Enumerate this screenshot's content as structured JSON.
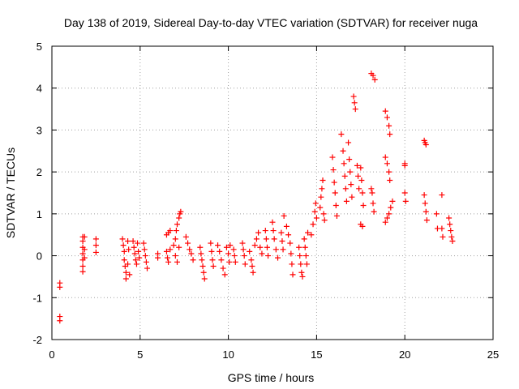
{
  "chart_data": {
    "type": "scatter",
    "title": "Day 138 of 2019, Sidereal Day-to-day VTEC variation (SDTVAR) for receiver nuga",
    "xlabel": "GPS time / hours",
    "ylabel": "SDTVAR / TECUs",
    "xlim": [
      0,
      25
    ],
    "ylim": [
      -2,
      5
    ],
    "xticks": [
      "0",
      "5",
      "10",
      "15",
      "20",
      "25"
    ],
    "yticks": [
      "-2",
      "-1",
      "0",
      "1",
      "2",
      "3",
      "4",
      "5"
    ],
    "grid": true,
    "marker": "plus",
    "color": "#ff0000",
    "series": [
      {
        "name": "SDTVAR",
        "points": [
          [
            0.45,
            -0.65
          ],
          [
            0.45,
            -0.75
          ],
          [
            0.45,
            -1.45
          ],
          [
            0.45,
            -1.55
          ],
          [
            1.75,
            0.45
          ],
          [
            1.75,
            0.35
          ],
          [
            1.75,
            0.2
          ],
          [
            1.75,
            0.05
          ],
          [
            1.75,
            -0.1
          ],
          [
            1.75,
            -0.25
          ],
          [
            1.75,
            -0.38
          ],
          [
            1.85,
            0.45
          ],
          [
            1.85,
            0.15
          ],
          [
            1.85,
            -0.05
          ],
          [
            2.5,
            0.4
          ],
          [
            2.5,
            0.25
          ],
          [
            2.5,
            0.08
          ],
          [
            4.0,
            0.4
          ],
          [
            4.05,
            0.25
          ],
          [
            4.1,
            0.1
          ],
          [
            4.1,
            -0.1
          ],
          [
            4.15,
            -0.25
          ],
          [
            4.2,
            -0.4
          ],
          [
            4.2,
            -0.55
          ],
          [
            4.3,
            0.35
          ],
          [
            4.35,
            0.15
          ],
          [
            4.3,
            -0.2
          ],
          [
            4.4,
            -0.45
          ],
          [
            4.6,
            0.35
          ],
          [
            4.65,
            0.2
          ],
          [
            4.7,
            0.05
          ],
          [
            4.75,
            -0.1
          ],
          [
            4.8,
            -0.2
          ],
          [
            4.85,
            0.3
          ],
          [
            4.9,
            0.1
          ],
          [
            4.95,
            -0.05
          ],
          [
            5.2,
            0.3
          ],
          [
            5.25,
            0.15
          ],
          [
            5.3,
            0.0
          ],
          [
            5.35,
            -0.15
          ],
          [
            5.4,
            -0.3
          ],
          [
            6.0,
            0.05
          ],
          [
            6.0,
            -0.05
          ],
          [
            6.5,
            0.5
          ],
          [
            6.6,
            0.55
          ],
          [
            6.7,
            0.6
          ],
          [
            6.5,
            0.1
          ],
          [
            6.55,
            -0.05
          ],
          [
            6.6,
            -0.15
          ],
          [
            6.7,
            0.15
          ],
          [
            6.9,
            0.25
          ],
          [
            7.0,
            0.4
          ],
          [
            7.05,
            0.6
          ],
          [
            7.1,
            0.75
          ],
          [
            7.2,
            0.9
          ],
          [
            7.25,
            1.0
          ],
          [
            7.3,
            1.05
          ],
          [
            7.0,
            0.0
          ],
          [
            7.1,
            -0.15
          ],
          [
            7.2,
            0.2
          ],
          [
            7.6,
            0.45
          ],
          [
            7.7,
            0.3
          ],
          [
            7.8,
            0.15
          ],
          [
            7.9,
            0.05
          ],
          [
            8.0,
            -0.1
          ],
          [
            8.4,
            0.2
          ],
          [
            8.45,
            0.05
          ],
          [
            8.5,
            -0.1
          ],
          [
            8.55,
            -0.25
          ],
          [
            8.6,
            -0.4
          ],
          [
            8.65,
            -0.55
          ],
          [
            9.0,
            0.3
          ],
          [
            9.05,
            0.1
          ],
          [
            9.1,
            -0.1
          ],
          [
            9.15,
            -0.25
          ],
          [
            9.4,
            0.25
          ],
          [
            9.5,
            0.1
          ],
          [
            9.6,
            -0.1
          ],
          [
            9.7,
            -0.3
          ],
          [
            9.8,
            -0.45
          ],
          [
            9.9,
            0.2
          ],
          [
            10.0,
            0.05
          ],
          [
            10.05,
            -0.15
          ],
          [
            10.1,
            0.25
          ],
          [
            10.3,
            0.15
          ],
          [
            10.35,
            0.0
          ],
          [
            10.4,
            -0.15
          ],
          [
            10.8,
            0.3
          ],
          [
            10.85,
            0.15
          ],
          [
            10.9,
            0.0
          ],
          [
            10.95,
            -0.2
          ],
          [
            11.2,
            0.1
          ],
          [
            11.3,
            -0.1
          ],
          [
            11.35,
            -0.25
          ],
          [
            11.4,
            -0.4
          ],
          [
            11.5,
            0.25
          ],
          [
            11.6,
            0.4
          ],
          [
            11.7,
            0.55
          ],
          [
            11.8,
            0.2
          ],
          [
            11.9,
            0.05
          ],
          [
            12.1,
            0.6
          ],
          [
            12.15,
            0.4
          ],
          [
            12.2,
            0.2
          ],
          [
            12.25,
            0.0
          ],
          [
            12.5,
            0.8
          ],
          [
            12.55,
            0.6
          ],
          [
            12.6,
            0.4
          ],
          [
            12.7,
            0.15
          ],
          [
            12.8,
            -0.05
          ],
          [
            13.0,
            0.55
          ],
          [
            13.05,
            0.35
          ],
          [
            13.1,
            0.15
          ],
          [
            13.15,
            0.95
          ],
          [
            13.3,
            0.7
          ],
          [
            13.4,
            0.5
          ],
          [
            13.5,
            0.3
          ],
          [
            13.55,
            0.05
          ],
          [
            13.6,
            -0.2
          ],
          [
            13.65,
            -0.45
          ],
          [
            14.0,
            0.2
          ],
          [
            14.05,
            0.0
          ],
          [
            14.1,
            -0.2
          ],
          [
            14.15,
            -0.4
          ],
          [
            14.2,
            -0.5
          ],
          [
            14.3,
            0.4
          ],
          [
            14.35,
            0.2
          ],
          [
            14.4,
            0.0
          ],
          [
            14.45,
            -0.2
          ],
          [
            14.5,
            0.55
          ],
          [
            14.7,
            0.5
          ],
          [
            14.8,
            0.75
          ],
          [
            14.9,
            1.05
          ],
          [
            14.95,
            1.25
          ],
          [
            15.0,
            0.9
          ],
          [
            15.2,
            1.15
          ],
          [
            15.25,
            1.4
          ],
          [
            15.3,
            1.6
          ],
          [
            15.35,
            1.8
          ],
          [
            15.4,
            1.0
          ],
          [
            15.45,
            0.85
          ],
          [
            15.9,
            2.35
          ],
          [
            15.95,
            2.05
          ],
          [
            16.0,
            1.75
          ],
          [
            16.05,
            1.5
          ],
          [
            16.1,
            1.2
          ],
          [
            16.15,
            0.95
          ],
          [
            16.4,
            2.9
          ],
          [
            16.5,
            2.5
          ],
          [
            16.55,
            2.2
          ],
          [
            16.6,
            1.9
          ],
          [
            16.65,
            1.6
          ],
          [
            16.7,
            1.3
          ],
          [
            16.8,
            2.7
          ],
          [
            16.85,
            2.3
          ],
          [
            16.9,
            2.0
          ],
          [
            16.95,
            1.7
          ],
          [
            17.0,
            1.4
          ],
          [
            17.1,
            3.8
          ],
          [
            17.15,
            3.65
          ],
          [
            17.2,
            3.5
          ],
          [
            17.3,
            2.15
          ],
          [
            17.35,
            1.9
          ],
          [
            17.4,
            1.6
          ],
          [
            17.5,
            2.1
          ],
          [
            17.55,
            1.8
          ],
          [
            17.6,
            1.5
          ],
          [
            17.65,
            1.2
          ],
          [
            17.5,
            0.75
          ],
          [
            17.6,
            0.7
          ],
          [
            18.1,
            4.35
          ],
          [
            18.2,
            4.3
          ],
          [
            18.3,
            4.2
          ],
          [
            18.1,
            1.6
          ],
          [
            18.15,
            1.5
          ],
          [
            18.2,
            1.25
          ],
          [
            18.25,
            1.05
          ],
          [
            18.9,
            3.45
          ],
          [
            19.0,
            3.3
          ],
          [
            19.1,
            3.1
          ],
          [
            19.15,
            2.9
          ],
          [
            18.9,
            2.35
          ],
          [
            19.0,
            2.2
          ],
          [
            19.1,
            2.0
          ],
          [
            19.15,
            1.8
          ],
          [
            18.9,
            0.8
          ],
          [
            19.0,
            0.9
          ],
          [
            19.1,
            1.0
          ],
          [
            19.2,
            1.15
          ],
          [
            19.3,
            1.3
          ],
          [
            20.0,
            2.2
          ],
          [
            20.0,
            2.15
          ],
          [
            20.0,
            1.5
          ],
          [
            20.05,
            1.3
          ],
          [
            21.1,
            2.75
          ],
          [
            21.15,
            2.7
          ],
          [
            21.2,
            2.65
          ],
          [
            21.1,
            1.45
          ],
          [
            21.15,
            1.25
          ],
          [
            21.2,
            1.05
          ],
          [
            21.25,
            0.85
          ],
          [
            21.8,
            1.0
          ],
          [
            21.85,
            0.65
          ],
          [
            22.1,
            1.45
          ],
          [
            22.1,
            0.65
          ],
          [
            22.15,
            0.45
          ],
          [
            22.5,
            0.9
          ],
          [
            22.55,
            0.75
          ],
          [
            22.6,
            0.6
          ],
          [
            22.65,
            0.45
          ],
          [
            22.7,
            0.35
          ]
        ]
      }
    ]
  }
}
